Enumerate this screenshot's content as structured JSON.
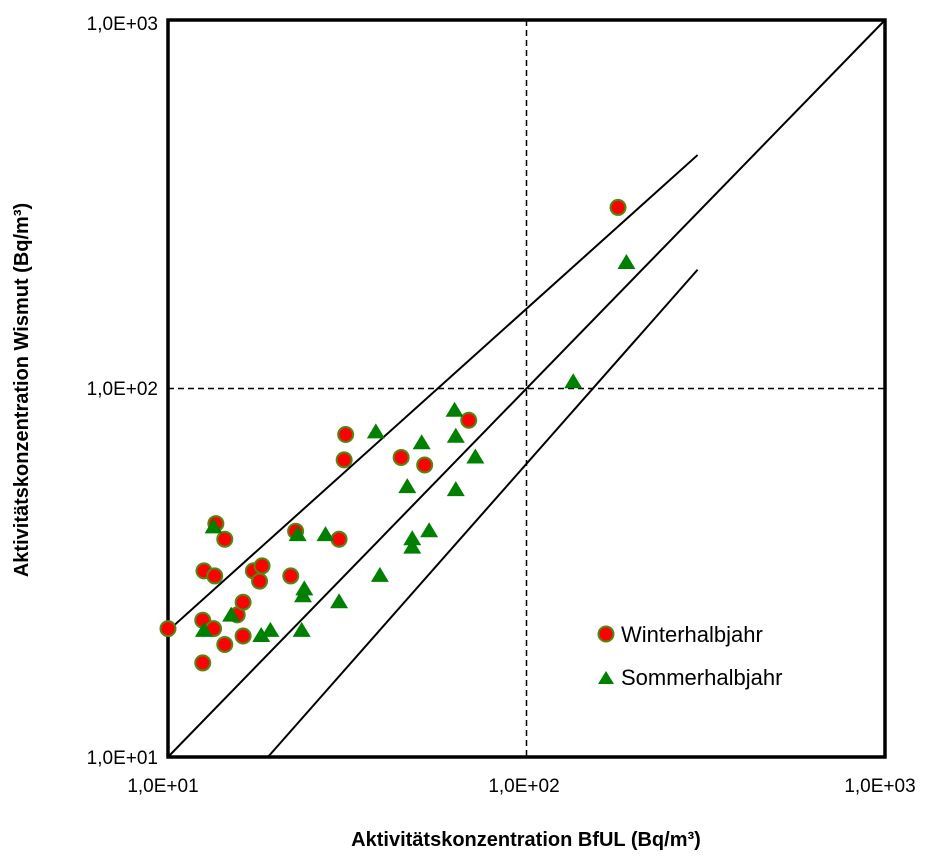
{
  "chart_data": {
    "type": "scatter",
    "xlabel": "Aktivitätskonzentration BfUL (Bq/m³)",
    "ylabel": "Aktivitätskonzentration Wismut (Bq/m³)",
    "xscale": "log",
    "yscale": "log",
    "xlim": [
      10,
      1000
    ],
    "ylim": [
      10,
      1000
    ],
    "x_ticks": [
      10,
      100,
      1000
    ],
    "y_ticks": [
      10,
      100,
      1000
    ],
    "x_tick_labels": [
      "1,0E+01",
      "1,0E+02",
      "1,0E+03"
    ],
    "y_tick_labels": [
      "1,0E+01",
      "1,0E+02",
      "1,0E+03"
    ],
    "grid": "dashed reference lines at x=100 and y=100",
    "legend_position": "bottom-right",
    "reference_lines": [
      {
        "x": [
          10,
          300
        ],
        "y": [
          22,
          430
        ]
      },
      {
        "x": [
          10,
          1000
        ],
        "y": [
          10,
          1000
        ]
      },
      {
        "x": [
          19,
          300
        ],
        "y": [
          10,
          210
        ]
      }
    ],
    "series": [
      {
        "name": "Winterhalbjahr",
        "marker": "circle",
        "color": "#ff0000",
        "edge_color": "#4f8a10",
        "points": [
          [
            10.0,
            22.3
          ],
          [
            12.5,
            18.0
          ],
          [
            12.5,
            23.5
          ],
          [
            12.6,
            32.0
          ],
          [
            13.4,
            22.3
          ],
          [
            13.5,
            31.0
          ],
          [
            13.6,
            43.0
          ],
          [
            14.4,
            39.0
          ],
          [
            14.4,
            20.2
          ],
          [
            15.6,
            24.3
          ],
          [
            16.2,
            21.3
          ],
          [
            16.2,
            26.3
          ],
          [
            17.3,
            32.0
          ],
          [
            18.0,
            30.0
          ],
          [
            18.3,
            33.0
          ],
          [
            22.0,
            31.0
          ],
          [
            22.7,
            41.0
          ],
          [
            30.0,
            39.0
          ],
          [
            31.0,
            64.0
          ],
          [
            31.3,
            75.0
          ],
          [
            44.7,
            65.0
          ],
          [
            52.0,
            62.0
          ],
          [
            69.0,
            82.0
          ],
          [
            180.0,
            310.0
          ]
        ]
      },
      {
        "name": "Sommerhalbjahr",
        "marker": "triangle",
        "color": "#008000",
        "points": [
          [
            12.6,
            22.0
          ],
          [
            13.4,
            42.0
          ],
          [
            15.0,
            24.2
          ],
          [
            18.2,
            21.3
          ],
          [
            19.3,
            22.0
          ],
          [
            23.0,
            40.0
          ],
          [
            23.6,
            22.0
          ],
          [
            23.8,
            27.3
          ],
          [
            24.0,
            28.5
          ],
          [
            27.5,
            40.0
          ],
          [
            30.0,
            26.3
          ],
          [
            38.0,
            76.0
          ],
          [
            39.0,
            31.0
          ],
          [
            46.5,
            54.0
          ],
          [
            48.0,
            37.0
          ],
          [
            48.0,
            39.0
          ],
          [
            51.0,
            71.0
          ],
          [
            53.5,
            41.0
          ],
          [
            63.0,
            87.0
          ],
          [
            63.5,
            74.0
          ],
          [
            63.5,
            53.0
          ],
          [
            72.0,
            65.0
          ],
          [
            135.0,
            104.0
          ],
          [
            190.0,
            219.0
          ]
        ]
      }
    ]
  }
}
